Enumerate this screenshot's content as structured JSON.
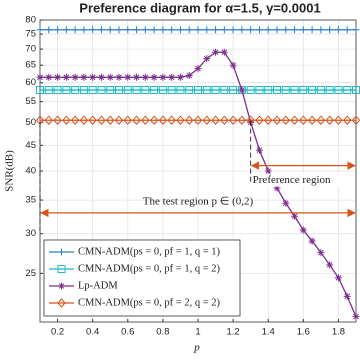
{
  "chart_data": {
    "type": "line",
    "title": "Preference diagram for α=1.5, γ=0.0001",
    "xlabel": "p",
    "ylabel": "SNR(dB)",
    "x": [
      0.1,
      0.15,
      0.2,
      0.25,
      0.3,
      0.35,
      0.4,
      0.45,
      0.5,
      0.55,
      0.6,
      0.65,
      0.7,
      0.75,
      0.8,
      0.85,
      0.9,
      0.95,
      1.0,
      1.05,
      1.1,
      1.15,
      1.2,
      1.25,
      1.3,
      1.35,
      1.4,
      1.45,
      1.5,
      1.55,
      1.6,
      1.65,
      1.7,
      1.75,
      1.8,
      1.85,
      1.9
    ],
    "series": [
      {
        "name": "CMN-ADM(ps = 0, pf = 1, q = 1)",
        "color": "#2f7fc1",
        "marker": "plus",
        "values": [
          76.5,
          76.5,
          76.5,
          76.5,
          76.5,
          76.5,
          76.5,
          76.5,
          76.5,
          76.5,
          76.5,
          76.5,
          76.5,
          76.5,
          76.5,
          76.5,
          76.5,
          76.5,
          76.5,
          76.5,
          76.5,
          76.5,
          76.5,
          76.5,
          76.5,
          76.5,
          76.5,
          76.5,
          76.5,
          76.5,
          76.5,
          76.5,
          76.5,
          76.5,
          76.5,
          76.5,
          76.5
        ]
      },
      {
        "name": "CMN-ADM(ps = 0, pf = 1, q = 2)",
        "color": "#1fb8c8",
        "marker": "square",
        "values": [
          58,
          58,
          58,
          58,
          58,
          58,
          58,
          58,
          58,
          58,
          58,
          58,
          58,
          58,
          58,
          58,
          58,
          58,
          58,
          58,
          58,
          58,
          58,
          58,
          58,
          58,
          58,
          58,
          58,
          58,
          58,
          58,
          58,
          58,
          58,
          58,
          58
        ]
      },
      {
        "name": "Lp-ADM",
        "color": "#7e2f8e",
        "marker": "asterisk",
        "values": [
          61.5,
          61.5,
          61.5,
          61.5,
          61.5,
          61.5,
          61.5,
          61.5,
          61.5,
          61.5,
          61.5,
          61.5,
          61.5,
          61.5,
          61.5,
          61.5,
          61.5,
          62,
          64,
          67,
          69,
          69,
          65,
          58,
          50,
          44,
          40,
          37,
          34.5,
          32.5,
          30.5,
          29,
          27.5,
          26,
          24.5,
          22.5,
          20.5
        ]
      },
      {
        "name": "CMN-ADM(ps = 0, pf = 2, q = 2)",
        "color": "#d95319",
        "marker": "diamond",
        "values": [
          50.5,
          50.5,
          50.5,
          50.5,
          50.5,
          50.5,
          50.5,
          50.5,
          50.5,
          50.5,
          50.5,
          50.5,
          50.5,
          50.5,
          50.5,
          50.5,
          50.5,
          50.5,
          50.5,
          50.5,
          50.5,
          50.5,
          50.5,
          50.5,
          50.5,
          50.5,
          50.5,
          50.5,
          50.5,
          50.5,
          50.5,
          50.5,
          50.5,
          50.5,
          50.5,
          50.5,
          50.5
        ]
      }
    ],
    "xlim": [
      0.1,
      1.9
    ],
    "xticks": [
      0.2,
      0.4,
      0.6,
      0.8,
      1,
      1.2,
      1.4,
      1.6,
      1.8
    ],
    "ylim": [
      20,
      80
    ],
    "yticks": [
      25,
      30,
      35,
      40,
      45,
      50,
      55,
      60,
      65,
      70,
      75,
      80
    ],
    "ylog": true,
    "grid": true,
    "legend": "lower left",
    "annotations": [
      {
        "text": "Preference region",
        "x": [
          1.3,
          1.9
        ],
        "y": 41,
        "text_side": "below"
      },
      {
        "text": "The test region p ∈ (0,2)",
        "x": [
          0.1,
          1.9
        ],
        "y": 33,
        "text_side": "above"
      }
    ]
  }
}
